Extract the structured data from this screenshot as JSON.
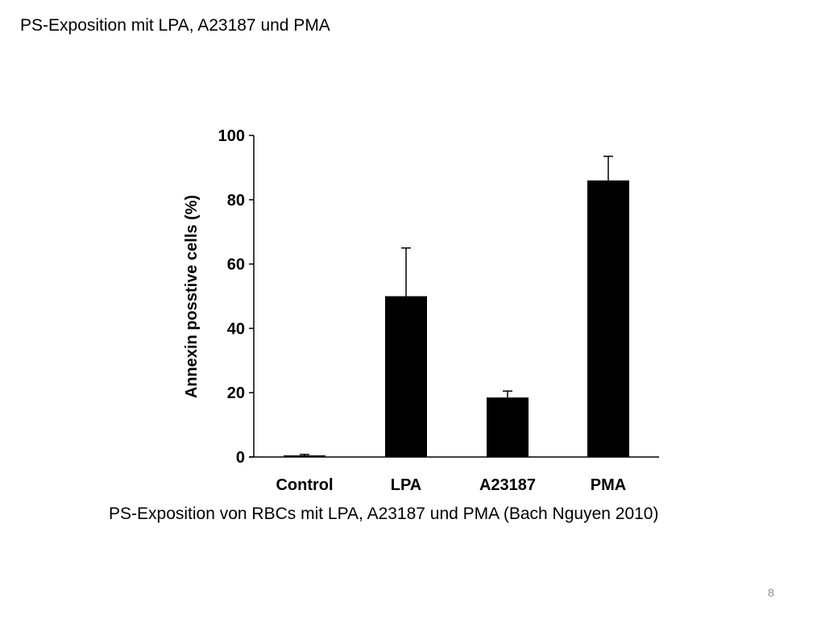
{
  "slide": {
    "title": "PS-Exposition mit LPA, A23187 und PMA",
    "caption": "PS-Exposition von RBCs mit LPA, A23187 und PMA (Bach Nguyen 2010)",
    "page_number": "8"
  },
  "chart_data": {
    "type": "bar",
    "categories": [
      "Control",
      "LPA",
      "A23187",
      "PMA"
    ],
    "values": [
      0.5,
      50,
      18.5,
      86
    ],
    "error_bars": [
      0.3,
      15,
      2,
      7.5
    ],
    "ylabel": "Annexin posstive cells (%)",
    "xlabel": "",
    "title": "",
    "ylim": [
      0,
      100
    ],
    "yticks": [
      0,
      20,
      40,
      60,
      80,
      100
    ],
    "bar_color": "#000000",
    "grid": false,
    "legend": "none"
  }
}
